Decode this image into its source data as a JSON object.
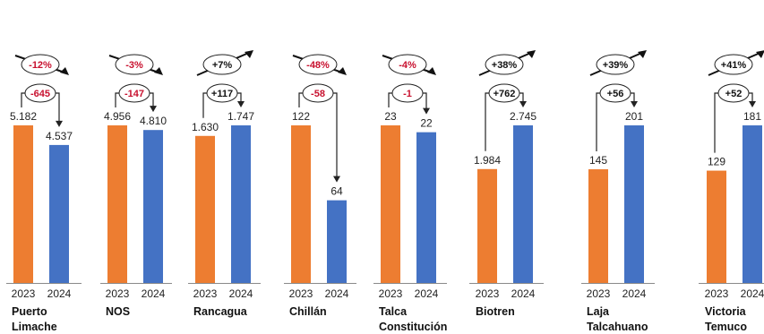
{
  "chart_data": {
    "type": "bar",
    "title": "",
    "xlabel": "",
    "ylabel": "",
    "series_names": [
      "2023",
      "2024"
    ],
    "colors": {
      "2023": "#ED7D31",
      "2024": "#4472C4",
      "negative": "#C8102E",
      "positive": "#111111"
    },
    "panels": [
      {
        "category": [
          "Puerto",
          "Limache"
        ],
        "values": [
          5182,
          4537
        ],
        "labels": [
          "5.182",
          "4.537"
        ],
        "diff": "-645",
        "pct": "-12%",
        "trend": "down"
      },
      {
        "category": [
          "NOS"
        ],
        "values": [
          4956,
          4810
        ],
        "labels": [
          "4.956",
          "4.810"
        ],
        "diff": "-147",
        "pct": "-3%",
        "trend": "down"
      },
      {
        "category": [
          "Rancagua"
        ],
        "values": [
          1630,
          1747
        ],
        "labels": [
          "1.630",
          "1.747"
        ],
        "diff": "+117",
        "pct": "+7%",
        "trend": "up"
      },
      {
        "category": [
          "Chillán"
        ],
        "values": [
          122,
          64
        ],
        "labels": [
          "122",
          "64"
        ],
        "diff": "-58",
        "pct": "-48%",
        "trend": "down"
      },
      {
        "category": [
          "Talca",
          "Constitución"
        ],
        "values": [
          23,
          22
        ],
        "labels": [
          "23",
          "22"
        ],
        "diff": "-1",
        "pct": "-4%",
        "trend": "down"
      },
      {
        "category": [
          "Biotren"
        ],
        "values": [
          1984,
          2745
        ],
        "labels": [
          "1.984",
          "2.745"
        ],
        "diff": "+762",
        "pct": "+38%",
        "trend": "up"
      },
      {
        "category": [
          "Laja",
          "Talcahuano"
        ],
        "values": [
          145,
          201
        ],
        "labels": [
          "145",
          "201"
        ],
        "diff": "+56",
        "pct": "+39%",
        "trend": "up"
      },
      {
        "category": [
          "Victoria",
          "Temuco"
        ],
        "values": [
          129,
          181
        ],
        "labels": [
          "129",
          "181"
        ],
        "diff": "+52",
        "pct": "+41%",
        "trend": "up"
      }
    ]
  }
}
